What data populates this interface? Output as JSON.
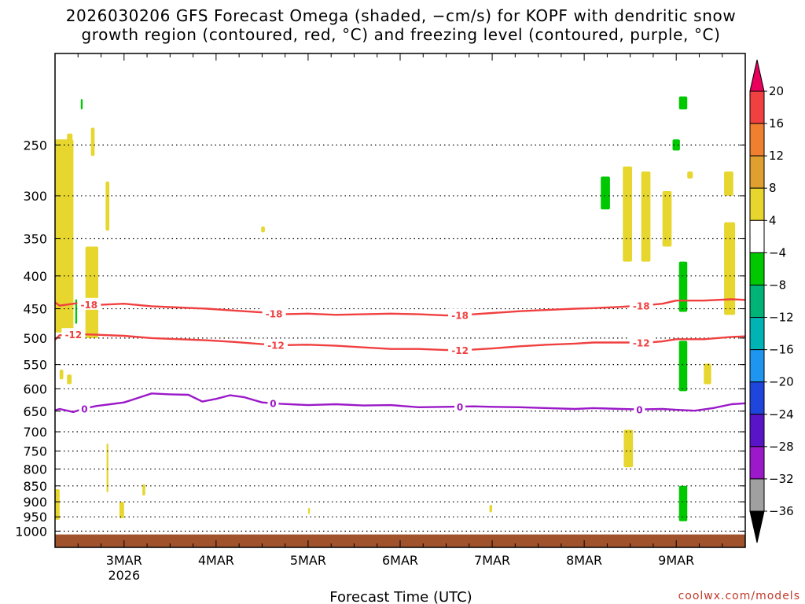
{
  "chart_data": {
    "type": "time-height cross-section",
    "title_line1": "2026030206 GFS Forecast Omega (shaded, −cm/s) for KOPF with dendritic snow",
    "title_line2": "growth region (contoured, red, °C) and freezing level (contoured, purple, °C)",
    "xlabel": "Forecast Time (UTC)",
    "credit": "coolwx.com/models",
    "x_range_days": [
      2.25,
      9.75
    ],
    "x_ticks": [
      {
        "day": 3,
        "label": "3MAR",
        "sublabel": "2026"
      },
      {
        "day": 4,
        "label": "4MAR",
        "sublabel": ""
      },
      {
        "day": 5,
        "label": "5MAR",
        "sublabel": ""
      },
      {
        "day": 6,
        "label": "6MAR",
        "sublabel": ""
      },
      {
        "day": 7,
        "label": "7MAR",
        "sublabel": ""
      },
      {
        "day": 8,
        "label": "8MAR",
        "sublabel": ""
      },
      {
        "day": 9,
        "label": "9MAR",
        "sublabel": ""
      }
    ],
    "y_axis": "pressure (hPa), log scale, reversed",
    "y_range_hpa": [
      180,
      1060
    ],
    "y_ticks": [
      250,
      300,
      350,
      400,
      450,
      500,
      550,
      600,
      650,
      700,
      750,
      800,
      850,
      900,
      950,
      1000
    ],
    "colorbar": {
      "ticks": [
        "20",
        "16",
        "12",
        "8",
        "4",
        "−4",
        "−8",
        "−12",
        "−16",
        "−20",
        "−24",
        "−28",
        "−32",
        "−36"
      ],
      "colors": [
        "#e8005c",
        "#f04040",
        "#f08030",
        "#e0a030",
        "#e6d62e",
        "#ffffff",
        "#00c800",
        "#00b478",
        "#00b4b4",
        "#1e96f0",
        "#1e46dc",
        "#5a14c8",
        "#9b19c8",
        "#a0a0a0",
        "#000000"
      ]
    },
    "contours": [
      {
        "name": "dendritic -18C",
        "color": "#f04040",
        "label": "-18",
        "points": [
          [
            2.25,
            440
          ],
          [
            2.3,
            445
          ],
          [
            2.5,
            441
          ],
          [
            2.7,
            444
          ],
          [
            3.0,
            442
          ],
          [
            3.3,
            446
          ],
          [
            3.6,
            448
          ],
          [
            3.9,
            450
          ],
          [
            4.2,
            453
          ],
          [
            4.5,
            456
          ],
          [
            4.7,
            459
          ],
          [
            5.0,
            458
          ],
          [
            5.3,
            460
          ],
          [
            5.6,
            459
          ],
          [
            5.9,
            458
          ],
          [
            6.2,
            459
          ],
          [
            6.5,
            461
          ],
          [
            6.8,
            459
          ],
          [
            7.0,
            457
          ],
          [
            7.3,
            454
          ],
          [
            7.6,
            452
          ],
          [
            7.9,
            450
          ],
          [
            8.1,
            449
          ],
          [
            8.4,
            447
          ],
          [
            8.7,
            444
          ],
          [
            8.85,
            442
          ],
          [
            9.0,
            437
          ],
          [
            9.3,
            437
          ],
          [
            9.6,
            435
          ],
          [
            9.75,
            436
          ]
        ],
        "label_days": [
          2.62,
          4.63,
          6.65,
          8.62
        ]
      },
      {
        "name": "dendritic -12C",
        "color": "#f04040",
        "label": "-12",
        "points": [
          [
            2.25,
            503
          ],
          [
            2.3,
            495
          ],
          [
            2.5,
            493
          ],
          [
            2.7,
            494
          ],
          [
            3.0,
            496
          ],
          [
            3.3,
            500
          ],
          [
            3.6,
            502
          ],
          [
            3.9,
            504
          ],
          [
            4.2,
            507
          ],
          [
            4.5,
            511
          ],
          [
            4.7,
            513
          ],
          [
            5.0,
            512
          ],
          [
            5.3,
            514
          ],
          [
            5.6,
            517
          ],
          [
            5.9,
            520
          ],
          [
            6.2,
            520
          ],
          [
            6.5,
            522
          ],
          [
            6.8,
            521
          ],
          [
            7.0,
            519
          ],
          [
            7.3,
            515
          ],
          [
            7.6,
            512
          ],
          [
            7.9,
            510
          ],
          [
            8.1,
            508
          ],
          [
            8.4,
            508
          ],
          [
            8.7,
            508
          ],
          [
            8.85,
            506
          ],
          [
            9.0,
            502
          ],
          [
            9.3,
            502
          ],
          [
            9.6,
            498
          ],
          [
            9.75,
            497
          ]
        ],
        "label_days": [
          2.45,
          4.65,
          6.65,
          8.62
        ]
      },
      {
        "name": "freezing level 0C",
        "color": "#9b19c8",
        "label": "0",
        "points": [
          [
            2.25,
            648
          ],
          [
            2.3,
            645
          ],
          [
            2.45,
            652
          ],
          [
            2.55,
            645
          ],
          [
            2.7,
            638
          ],
          [
            2.85,
            634
          ],
          [
            3.0,
            630
          ],
          [
            3.15,
            620
          ],
          [
            3.3,
            610
          ],
          [
            3.5,
            612
          ],
          [
            3.7,
            613
          ],
          [
            3.85,
            628
          ],
          [
            4.0,
            622
          ],
          [
            4.15,
            614
          ],
          [
            4.3,
            618
          ],
          [
            4.5,
            630
          ],
          [
            4.7,
            633
          ],
          [
            5.0,
            636
          ],
          [
            5.3,
            634
          ],
          [
            5.6,
            637
          ],
          [
            5.9,
            636
          ],
          [
            6.2,
            641
          ],
          [
            6.5,
            640
          ],
          [
            6.8,
            639
          ],
          [
            7.0,
            640
          ],
          [
            7.3,
            641
          ],
          [
            7.6,
            643
          ],
          [
            7.9,
            645
          ],
          [
            8.1,
            643
          ],
          [
            8.4,
            645
          ],
          [
            8.6,
            646
          ],
          [
            8.85,
            645
          ],
          [
            9.0,
            647
          ],
          [
            9.2,
            649
          ],
          [
            9.4,
            643
          ],
          [
            9.6,
            634
          ],
          [
            9.75,
            632
          ]
        ],
        "label_days": [
          2.57,
          4.62,
          6.65,
          8.6
        ]
      }
    ],
    "shaded_regions": [
      {
        "color": "#e6d62e",
        "day0": 2.25,
        "day1": 2.45,
        "p_top": 245,
        "p_bottom": 490,
        "note": "positive omega 4-8"
      },
      {
        "color": "#e6d62e",
        "day0": 2.58,
        "day1": 2.72,
        "p_top": 360,
        "p_bottom": 500
      },
      {
        "color": "#e6d62e",
        "day0": 2.8,
        "day1": 2.84,
        "p_top": 285,
        "p_bottom": 340
      },
      {
        "color": "#e6d62e",
        "day0": 2.38,
        "day1": 2.44,
        "p_top": 240,
        "p_bottom": 265
      },
      {
        "color": "#e6d62e",
        "day0": 2.64,
        "day1": 2.68,
        "p_top": 235,
        "p_bottom": 260
      },
      {
        "color": "#e6d62e",
        "day0": 2.3,
        "day1": 2.34,
        "p_top": 560,
        "p_bottom": 580
      },
      {
        "color": "#e6d62e",
        "day0": 2.38,
        "day1": 2.43,
        "p_top": 570,
        "p_bottom": 590
      },
      {
        "color": "#e6d62e",
        "day0": 2.2,
        "day1": 2.3,
        "p_top": 860,
        "p_bottom": 960
      },
      {
        "color": "#e6d62e",
        "day0": 2.95,
        "day1": 3.0,
        "p_top": 900,
        "p_bottom": 955
      },
      {
        "color": "#e6d62e",
        "day0": 3.2,
        "day1": 3.23,
        "p_top": 845,
        "p_bottom": 880
      },
      {
        "color": "#e6d62e",
        "day0": 4.49,
        "day1": 4.53,
        "p_top": 335,
        "p_bottom": 342
      },
      {
        "color": "#e6d62e",
        "day0": 8.42,
        "day1": 8.52,
        "p_top": 270,
        "p_bottom": 380
      },
      {
        "color": "#e6d62e",
        "day0": 8.62,
        "day1": 8.72,
        "p_top": 275,
        "p_bottom": 380
      },
      {
        "color": "#e6d62e",
        "day0": 8.85,
        "day1": 8.95,
        "p_top": 295,
        "p_bottom": 360
      },
      {
        "color": "#e6d62e",
        "day0": 9.12,
        "day1": 9.18,
        "p_top": 275,
        "p_bottom": 282
      },
      {
        "color": "#e6d62e",
        "day0": 9.52,
        "day1": 9.62,
        "p_top": 275,
        "p_bottom": 300
      },
      {
        "color": "#e6d62e",
        "day0": 9.52,
        "day1": 9.64,
        "p_top": 330,
        "p_bottom": 460
      },
      {
        "color": "#e6d62e",
        "day0": 9.3,
        "day1": 9.38,
        "p_top": 548,
        "p_bottom": 590
      },
      {
        "color": "#e6d62e",
        "day0": 8.43,
        "day1": 8.53,
        "p_top": 695,
        "p_bottom": 795
      },
      {
        "color": "#e6d62e",
        "day0": 2.81,
        "day1": 2.83,
        "p_top": 730,
        "p_bottom": 870
      },
      {
        "color": "#e6d62e",
        "day0": 6.97,
        "day1": 7.0,
        "p_top": 910,
        "p_bottom": 935
      },
      {
        "color": "#e6d62e",
        "day0": 5.0,
        "day1": 5.02,
        "p_top": 920,
        "p_bottom": 940
      },
      {
        "color": "#00c800",
        "day0": 8.18,
        "day1": 8.28,
        "p_top": 280,
        "p_bottom": 315
      },
      {
        "color": "#00c800",
        "day0": 9.03,
        "day1": 9.12,
        "p_top": 210,
        "p_bottom": 220
      },
      {
        "color": "#00c800",
        "day0": 8.96,
        "day1": 9.04,
        "p_top": 245,
        "p_bottom": 255
      },
      {
        "color": "#00c800",
        "day0": 9.03,
        "day1": 9.12,
        "p_top": 380,
        "p_bottom": 455
      },
      {
        "color": "#00c800",
        "day0": 9.03,
        "day1": 9.12,
        "p_top": 505,
        "p_bottom": 605
      },
      {
        "color": "#00c800",
        "day0": 9.03,
        "day1": 9.12,
        "p_top": 850,
        "p_bottom": 965
      },
      {
        "color": "#00c800",
        "day0": 2.47,
        "day1": 2.49,
        "p_top": 435,
        "p_bottom": 475
      },
      {
        "color": "#00c800",
        "day0": 2.53,
        "day1": 2.55,
        "p_top": 212,
        "p_bottom": 220
      }
    ],
    "ground_color": "#a0522d"
  }
}
